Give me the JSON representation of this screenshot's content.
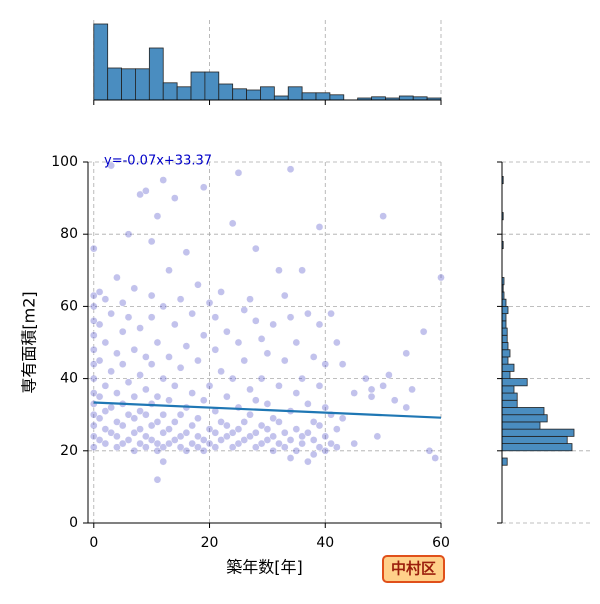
{
  "chart_data": [
    {
      "type": "scatter",
      "xlabel": "築年数[年]",
      "ylabel": "専有面積[m2]",
      "xlim": [
        -1,
        60
      ],
      "ylim": [
        0,
        100
      ],
      "xticks": [
        0,
        20,
        40,
        60
      ],
      "yticks": [
        0,
        20,
        40,
        60,
        80,
        100
      ],
      "grid": true,
      "series": [
        {
          "color": "#3535c0",
          "x": [
            0,
            0,
            0,
            0,
            0,
            0,
            0,
            0,
            0,
            0,
            0,
            0,
            0,
            0,
            1,
            1,
            1,
            1,
            1,
            1,
            2,
            2,
            2,
            2,
            2,
            2,
            3,
            3,
            3,
            3,
            3,
            4,
            4,
            4,
            4,
            4,
            4,
            5,
            5,
            5,
            5,
            5,
            5,
            6,
            6,
            6,
            6,
            6,
            7,
            7,
            7,
            7,
            7,
            7,
            8,
            8,
            8,
            8,
            8,
            8,
            9,
            9,
            9,
            9,
            9,
            9,
            10,
            10,
            10,
            10,
            10,
            10,
            10,
            11,
            11,
            11,
            11,
            11,
            11,
            11,
            12,
            12,
            12,
            12,
            12,
            12,
            12,
            13,
            13,
            13,
            13,
            13,
            14,
            14,
            14,
            14,
            14,
            15,
            15,
            15,
            15,
            15,
            16,
            16,
            16,
            16,
            16,
            17,
            17,
            17,
            17,
            18,
            18,
            18,
            18,
            18,
            19,
            19,
            19,
            19,
            19,
            20,
            20,
            20,
            20,
            21,
            21,
            21,
            21,
            21,
            22,
            22,
            22,
            22,
            23,
            23,
            23,
            23,
            24,
            24,
            24,
            24,
            25,
            25,
            25,
            25,
            25,
            26,
            26,
            26,
            26,
            27,
            27,
            27,
            27,
            28,
            28,
            28,
            28,
            28,
            29,
            29,
            29,
            29,
            30,
            30,
            30,
            30,
            31,
            31,
            31,
            31,
            32,
            32,
            32,
            32,
            33,
            33,
            33,
            33,
            34,
            34,
            34,
            34,
            34,
            35,
            35,
            35,
            35,
            36,
            36,
            36,
            36,
            37,
            37,
            37,
            37,
            38,
            38,
            38,
            38,
            39,
            39,
            39,
            39,
            39,
            40,
            40,
            40,
            40,
            41,
            41,
            41,
            42,
            42,
            42,
            43,
            43,
            45,
            45,
            47,
            48,
            48,
            49,
            50,
            50,
            51,
            52,
            54,
            54,
            55,
            57,
            58,
            59,
            60
          ],
          "y": [
            21,
            24,
            27,
            30,
            33,
            36,
            40,
            44,
            48,
            52,
            56,
            60,
            63,
            76,
            23,
            29,
            35,
            45,
            55,
            64,
            22,
            26,
            31,
            38,
            50,
            62,
            25,
            32,
            42,
            58,
            99,
            21,
            24,
            28,
            36,
            47,
            68,
            22,
            27,
            33,
            44,
            53,
            61,
            23,
            30,
            39,
            80,
            57,
            20,
            25,
            29,
            35,
            48,
            65,
            22,
            26,
            31,
            41,
            91,
            54,
            21,
            24,
            30,
            37,
            92,
            46,
            23,
            27,
            33,
            44,
            57,
            78,
            63,
            20,
            22,
            28,
            35,
            50,
            85,
            12,
            21,
            25,
            30,
            40,
            60,
            95,
            17,
            22,
            26,
            34,
            46,
            70,
            23,
            28,
            38,
            55,
            90,
            21,
            24,
            30,
            43,
            62,
            20,
            25,
            32,
            49,
            75,
            22,
            27,
            36,
            58,
            21,
            24,
            29,
            45,
            66,
            20,
            23,
            34,
            52,
            93,
            22,
            26,
            38,
            61,
            21,
            25,
            31,
            48,
            57,
            23,
            28,
            42,
            64,
            24,
            27,
            35,
            53,
            21,
            25,
            40,
            83,
            22,
            26,
            32,
            50,
            97,
            23,
            28,
            45,
            59,
            24,
            30,
            37,
            62,
            21,
            25,
            34,
            56,
            76,
            22,
            27,
            40,
            51,
            23,
            26,
            33,
            47,
            20,
            24,
            29,
            55,
            22,
            28,
            38,
            70,
            21,
            25,
            45,
            63,
            18,
            23,
            31,
            57,
            98,
            20,
            26,
            36,
            50,
            22,
            24,
            40,
            70,
            17,
            25,
            33,
            58,
            19,
            23,
            28,
            46,
            21,
            27,
            38,
            55,
            82,
            20,
            24,
            32,
            44,
            22,
            30,
            58,
            21,
            26,
            50,
            29,
            44,
            22,
            36,
            40,
            35,
            37,
            24,
            38,
            85,
            41,
            34,
            32,
            47,
            37,
            53,
            20,
            18,
            68
          ]
        }
      ],
      "regression": {
        "slope": -0.07,
        "intercept": 33.37,
        "label": "y=-0.07x+33.37",
        "color": "#1f77b4"
      }
    },
    {
      "type": "histogram",
      "orientation": "vertical",
      "color": "#4a8dc0",
      "bins": [
        0,
        2.4,
        4.8,
        7.2,
        9.6,
        12,
        14.4,
        16.8,
        19.2,
        21.6,
        24,
        26.4,
        28.8,
        31.2,
        33.6,
        36,
        38.4,
        40.8,
        43.2,
        45.6,
        48,
        50.4,
        52.8,
        55.2,
        57.6,
        60
      ],
      "counts": [
        190,
        80,
        78,
        78,
        130,
        43,
        33,
        70,
        70,
        40,
        28,
        25,
        33,
        10,
        33,
        18,
        18,
        13,
        0,
        5,
        8,
        5,
        10,
        8,
        5
      ],
      "xlim": [
        -1,
        60
      ],
      "ylim": [
        0,
        200
      ],
      "xticks": [
        0,
        20,
        40,
        60
      ],
      "grid": true
    },
    {
      "type": "histogram",
      "orientation": "horizontal",
      "color": "#4a8dc0",
      "bins": [
        16,
        18,
        20,
        22,
        24,
        26,
        28,
        30,
        32,
        34,
        36,
        38,
        40,
        42,
        44,
        46,
        48,
        50,
        52,
        54,
        56,
        58,
        60,
        62,
        64,
        66,
        68,
        70,
        72,
        74,
        76,
        78,
        80,
        82,
        84,
        86,
        88,
        90,
        92,
        94,
        96,
        98,
        100
      ],
      "counts": [
        13,
        0,
        175,
        163,
        180,
        95,
        113,
        105,
        38,
        38,
        30,
        63,
        20,
        30,
        15,
        20,
        15,
        13,
        13,
        10,
        10,
        15,
        10,
        5,
        3,
        5,
        0,
        0,
        0,
        0,
        3,
        0,
        0,
        0,
        3,
        0,
        0,
        0,
        0,
        3,
        0,
        0
      ],
      "xlim": [
        0,
        220
      ],
      "ylim": [
        0,
        100
      ],
      "yticks": [
        0,
        20,
        40,
        60,
        80,
        100
      ],
      "grid": true
    }
  ],
  "badge": "中村区"
}
